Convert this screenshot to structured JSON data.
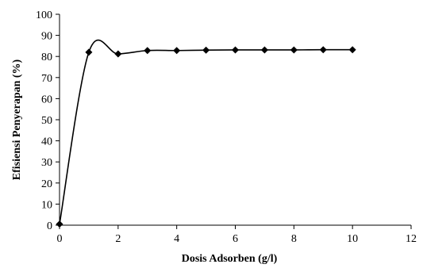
{
  "chart_data": {
    "type": "line",
    "title": "",
    "xlabel": "Dosis Adsorben  (g/l)",
    "ylabel": "Efisiensi Penyerapan  (%)",
    "xlim": [
      0,
      12
    ],
    "ylim": [
      0,
      100
    ],
    "x_ticks": [
      "0",
      "2",
      "4",
      "6",
      "8",
      "10",
      "12"
    ],
    "y_ticks": [
      "0",
      "10",
      "20",
      "30",
      "40",
      "50",
      "60",
      "70",
      "80",
      "90",
      "100"
    ],
    "grid": false,
    "smoothed": true,
    "marker": "diamond",
    "series_color": "#000000",
    "series": [
      {
        "x": [
          0,
          1,
          2,
          3,
          4,
          5,
          6,
          7,
          8,
          9,
          10
        ],
        "values": [
          0.5,
          82,
          81.2,
          82.8,
          82.8,
          83,
          83.1,
          83.1,
          83.1,
          83.2,
          83.2
        ]
      }
    ]
  }
}
